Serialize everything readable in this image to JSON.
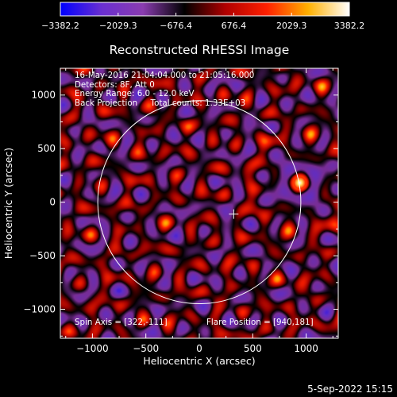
{
  "chart_data": {
    "type": "heatmap",
    "title": "Reconstructed RHESSI Image",
    "xlabel": "Heliocentric X (arcsec)",
    "ylabel": "Heliocentric Y (arcsec)",
    "xlim": [
      -1300,
      1300
    ],
    "ylim": [
      -1270,
      1250
    ],
    "x_ticks": [
      -1000,
      -500,
      0,
      500,
      1000
    ],
    "y_ticks": [
      -1000,
      -500,
      0,
      500,
      1000
    ],
    "x_tick_labels": [
      "−1000",
      "−500",
      "0",
      "500",
      "1000"
    ],
    "y_tick_labels": [
      "−1000",
      "−500",
      "0",
      "500",
      "1000"
    ],
    "colorbar": {
      "range": [
        -3382.2,
        3382.2
      ],
      "ticks": [
        -3382.2,
        -2029.3,
        -676.4,
        676.4,
        2029.3,
        3382.2
      ],
      "tick_labels": [
        "−3382.2",
        "−2029.3",
        "−676.4",
        "676.4",
        "2029.3",
        "3382.2"
      ],
      "colors": [
        "#0000ff",
        "#6a2fd0",
        "#8a3cb0",
        "#000000",
        "#b00000",
        "#ff2000",
        "#ffb000",
        "#ffffff"
      ]
    },
    "info_lines": [
      "16-May-2016 21:04:04.000 to 21:05:16.000",
      "Detectors: 8F, Att 0",
      "Energy Range: 6.0 - 12.0 keV",
      "Back Projection     Total counts: 1.33E+03"
    ],
    "spin_axis_label": "Spin Axis = [322,-111]",
    "flare_position_label": "Flare Position = [940,181]",
    "spin_axis": [
      322,
      -111
    ],
    "flare_position": [
      940,
      181
    ],
    "solar_disk": {
      "center": [
        0,
        0
      ],
      "radius": 950
    },
    "source_peak": {
      "x": 940,
      "y": 181,
      "value": 3382.2
    },
    "footer_timestamp": "5-Sep-2022 15:15"
  }
}
